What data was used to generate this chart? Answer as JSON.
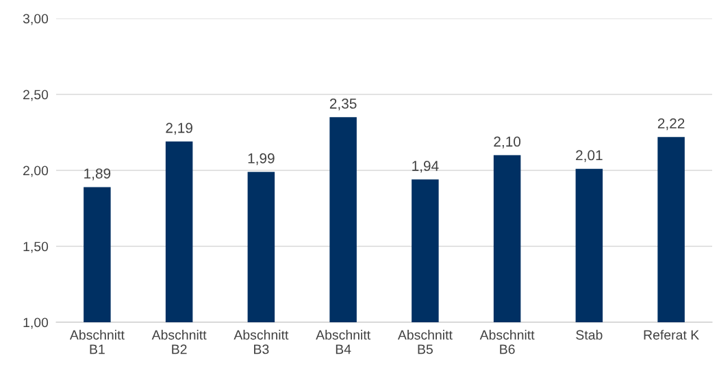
{
  "chart_data": {
    "type": "bar",
    "categories": [
      "Abschnitt\nB1",
      "Abschnitt\nB2",
      "Abschnitt\nB3",
      "Abschnitt\nB4",
      "Abschnitt\nB5",
      "Abschnitt\nB6",
      "Stab",
      "Referat K"
    ],
    "values": [
      1.89,
      2.19,
      1.99,
      2.35,
      1.94,
      2.1,
      2.01,
      2.22
    ],
    "value_labels": [
      "1,89",
      "2,19",
      "1,99",
      "2,35",
      "1,94",
      "2,10",
      "2,01",
      "2,22"
    ],
    "color": "#003063",
    "ylim": [
      1,
      3
    ],
    "yticks": [
      {
        "value": 1,
        "label": "1,00"
      },
      {
        "value": 1.5,
        "label": "1,50"
      },
      {
        "value": 2,
        "label": "2,00"
      },
      {
        "value": 2.5,
        "label": "2,50"
      },
      {
        "value": 3,
        "label": "3,00"
      }
    ],
    "grid": "y"
  }
}
